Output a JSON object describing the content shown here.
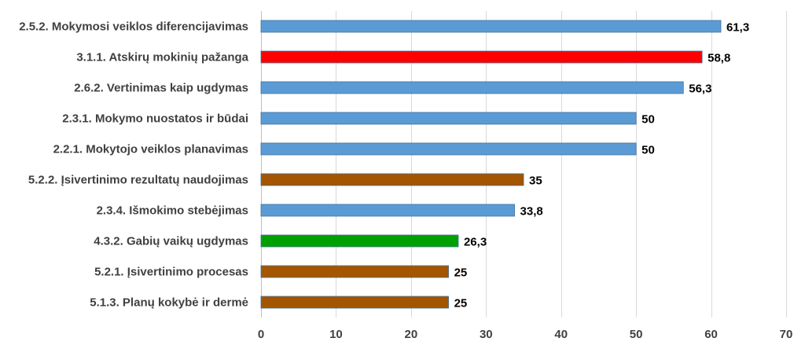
{
  "chart_data": {
    "type": "bar",
    "orientation": "horizontal",
    "title": "",
    "xlabel": "",
    "ylabel": "",
    "xlim": [
      0,
      70
    ],
    "ticks": [
      "0",
      "10",
      "20",
      "30",
      "40",
      "50",
      "60",
      "70"
    ],
    "tick_values": [
      0,
      10,
      20,
      30,
      40,
      50,
      60,
      70
    ],
    "grid": true,
    "legend": "none",
    "categories": [
      "2.5.2. Mokymosi veiklos diferencijavimas",
      "3.1.1. Atskirų mokinių pažanga",
      "2.6.2. Vertinimas kaip ugdymas",
      "2.3.1. Mokymo nuostatos ir būdai",
      "2.2.1. Mokytojo veiklos planavimas",
      "5.2.2. Įsivertinimo rezultatų naudojimas",
      "2.3.4. Išmokimo stebėjimas",
      "4.3.2. Gabių vaikų ugdymas",
      "5.2.1. Įsivertinimo procesas",
      "5.1.3. Planų kokybė ir dermė"
    ],
    "values": [
      61.3,
      58.8,
      56.3,
      50,
      50,
      35,
      33.8,
      26.3,
      25,
      25
    ],
    "value_labels": [
      "61,3",
      "58,8",
      "56,3",
      "50",
      "50",
      "35",
      "33,8",
      "26,3",
      "25",
      "25"
    ],
    "colors": [
      "#5b9bd5",
      "#ff0000",
      "#5b9bd5",
      "#5b9bd5",
      "#5b9bd5",
      "#a45500",
      "#5b9bd5",
      "#00a000",
      "#a45500",
      "#a45500"
    ]
  }
}
